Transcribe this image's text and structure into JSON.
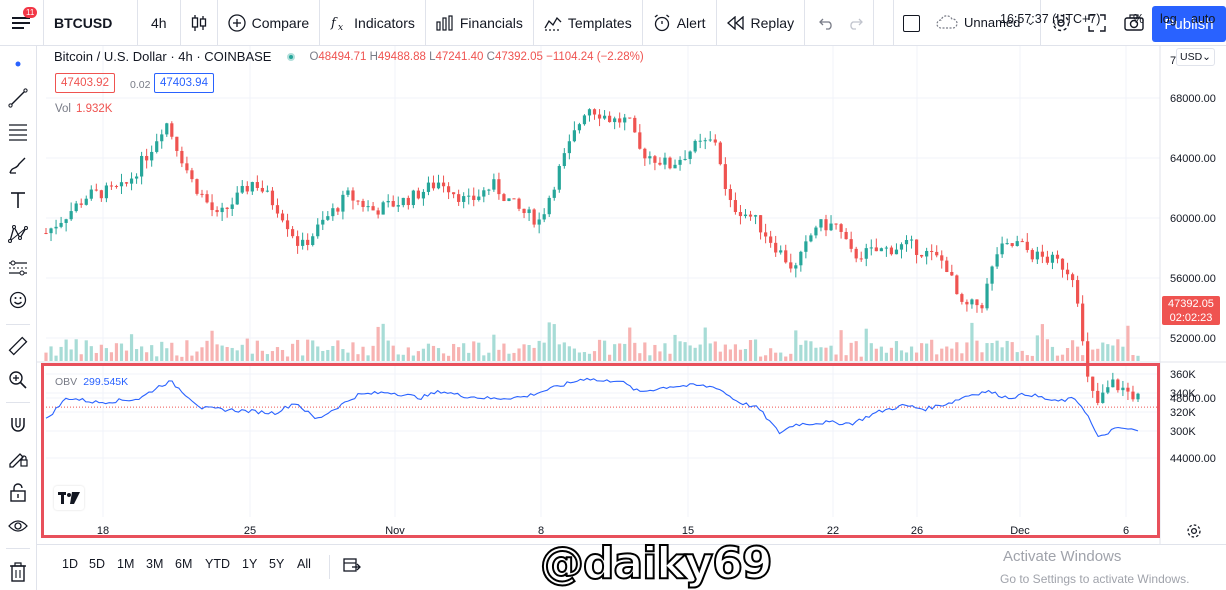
{
  "toolbar": {
    "menu_badge": "11",
    "symbol": "BTCUSD",
    "interval": "4h",
    "compare": "Compare",
    "indicators": "Indicators",
    "financials": "Financials",
    "templates": "Templates",
    "alert": "Alert",
    "replay": "Replay",
    "layout_name": "Unnamed",
    "publish": "Publish"
  },
  "legend": {
    "title": "Bitcoin / U.S. Dollar · 4h · COINBASE",
    "open_k": "O",
    "open": "48494.71",
    "high_k": "H",
    "high": "49488.88",
    "low_k": "L",
    "low": "47241.40",
    "close_k": "C",
    "close": "47392.05",
    "change": "−1104.24 (−2.28%)",
    "bid": "47403.92",
    "spread": "0.02",
    "ask": "47403.94",
    "vol_label": "Vol",
    "vol_value": "1.932K",
    "currency": "USD"
  },
  "obv": {
    "label": "OBV",
    "value": "299.545K"
  },
  "last_price": {
    "price": "47392.05",
    "countdown": "02:02:23"
  },
  "bottom": {
    "ranges": [
      "1D",
      "5D",
      "1M",
      "3M",
      "6M",
      "YTD",
      "1Y",
      "5Y",
      "All"
    ],
    "clock": "16:57:37 (UTC+7)",
    "percent": "%",
    "log": "log",
    "auto": "auto",
    "watermark": "@daiky69",
    "activate_title": "Activate Windows",
    "activate_sub": "Go to Settings to activate Windows."
  },
  "colors": {
    "up": "#26a69a",
    "down": "#ef5350",
    "obv": "#2962ff",
    "highlight": "#e8505b",
    "accent": "#2962ff"
  },
  "chart_data": {
    "type": "candlestick",
    "price_axis": [
      68000,
      64000,
      60000,
      56000,
      52000,
      48000,
      44000
    ],
    "price_axis_labels": [
      "68000.00",
      "64000.00",
      "60000.00",
      "56000.00",
      "52000.00",
      "48000.00",
      "44000.00"
    ],
    "obv_axis": [
      360,
      340,
      320,
      300
    ],
    "obv_axis_labels": [
      "360K",
      "340K",
      "320K",
      "300K"
    ],
    "x_ticks": [
      "18",
      "25",
      "Nov",
      "8",
      "15",
      "22",
      "26",
      "Dec",
      "6"
    ],
    "series": [
      {
        "name": "BTCUSD",
        "anchors": [
          [
            0,
            59000
          ],
          [
            0.04,
            61500
          ],
          [
            0.075,
            62000
          ],
          [
            0.1,
            64500
          ],
          [
            0.115,
            66500
          ],
          [
            0.14,
            62500
          ],
          [
            0.165,
            60000
          ],
          [
            0.2,
            62500
          ],
          [
            0.225,
            60500
          ],
          [
            0.245,
            58000
          ],
          [
            0.27,
            60000
          ],
          [
            0.29,
            61500
          ],
          [
            0.315,
            60500
          ],
          [
            0.35,
            61300
          ],
          [
            0.38,
            62500
          ],
          [
            0.405,
            61000
          ],
          [
            0.43,
            62200
          ],
          [
            0.455,
            60500
          ],
          [
            0.475,
            59800
          ],
          [
            0.495,
            63500
          ],
          [
            0.52,
            67500
          ],
          [
            0.545,
            66500
          ],
          [
            0.56,
            66500
          ],
          [
            0.57,
            64500
          ],
          [
            0.6,
            63500
          ],
          [
            0.625,
            64800
          ],
          [
            0.645,
            65200
          ],
          [
            0.655,
            61000
          ],
          [
            0.68,
            60000
          ],
          [
            0.72,
            56500
          ],
          [
            0.74,
            59500
          ],
          [
            0.76,
            59500
          ],
          [
            0.775,
            57500
          ],
          [
            0.8,
            57800
          ],
          [
            0.83,
            58200
          ],
          [
            0.865,
            57000
          ],
          [
            0.88,
            54000
          ],
          [
            0.9,
            54300
          ],
          [
            0.915,
            57800
          ],
          [
            0.935,
            58300
          ],
          [
            0.95,
            57500
          ],
          [
            0.975,
            57000
          ],
          [
            0.99,
            56000
          ],
          [
            1.0,
            49500
          ],
          [
            1.01,
            47500
          ],
          [
            1.025,
            49000
          ],
          [
            1.05,
            48000
          ]
        ]
      },
      {
        "name": "OBV",
        "anchors": [
          [
            0,
            312
          ],
          [
            0.02,
            335
          ],
          [
            0.05,
            330
          ],
          [
            0.09,
            334
          ],
          [
            0.11,
            348
          ],
          [
            0.12,
            352
          ],
          [
            0.15,
            324
          ],
          [
            0.18,
            322
          ],
          [
            0.22,
            319
          ],
          [
            0.24,
            330
          ],
          [
            0.26,
            312
          ],
          [
            0.3,
            338
          ],
          [
            0.33,
            341
          ],
          [
            0.36,
            335
          ],
          [
            0.38,
            342
          ],
          [
            0.4,
            337
          ],
          [
            0.43,
            334
          ],
          [
            0.46,
            336
          ],
          [
            0.49,
            346
          ],
          [
            0.52,
            356
          ],
          [
            0.535,
            352
          ],
          [
            0.55,
            354
          ],
          [
            0.57,
            341
          ],
          [
            0.6,
            347
          ],
          [
            0.625,
            348
          ],
          [
            0.645,
            346
          ],
          [
            0.665,
            331
          ],
          [
            0.685,
            324
          ],
          [
            0.705,
            298
          ],
          [
            0.72,
            307
          ],
          [
            0.75,
            309
          ],
          [
            0.775,
            308
          ],
          [
            0.8,
            320
          ],
          [
            0.825,
            327
          ],
          [
            0.845,
            323
          ],
          [
            0.87,
            330
          ],
          [
            0.885,
            337
          ],
          [
            0.905,
            342
          ],
          [
            0.925,
            335
          ],
          [
            0.945,
            339
          ],
          [
            0.97,
            331
          ],
          [
            0.99,
            334
          ],
          [
            1.0,
            320
          ],
          [
            1.012,
            292
          ],
          [
            1.025,
            301
          ],
          [
            1.035,
            303
          ],
          [
            1.05,
            300
          ]
        ]
      }
    ]
  }
}
